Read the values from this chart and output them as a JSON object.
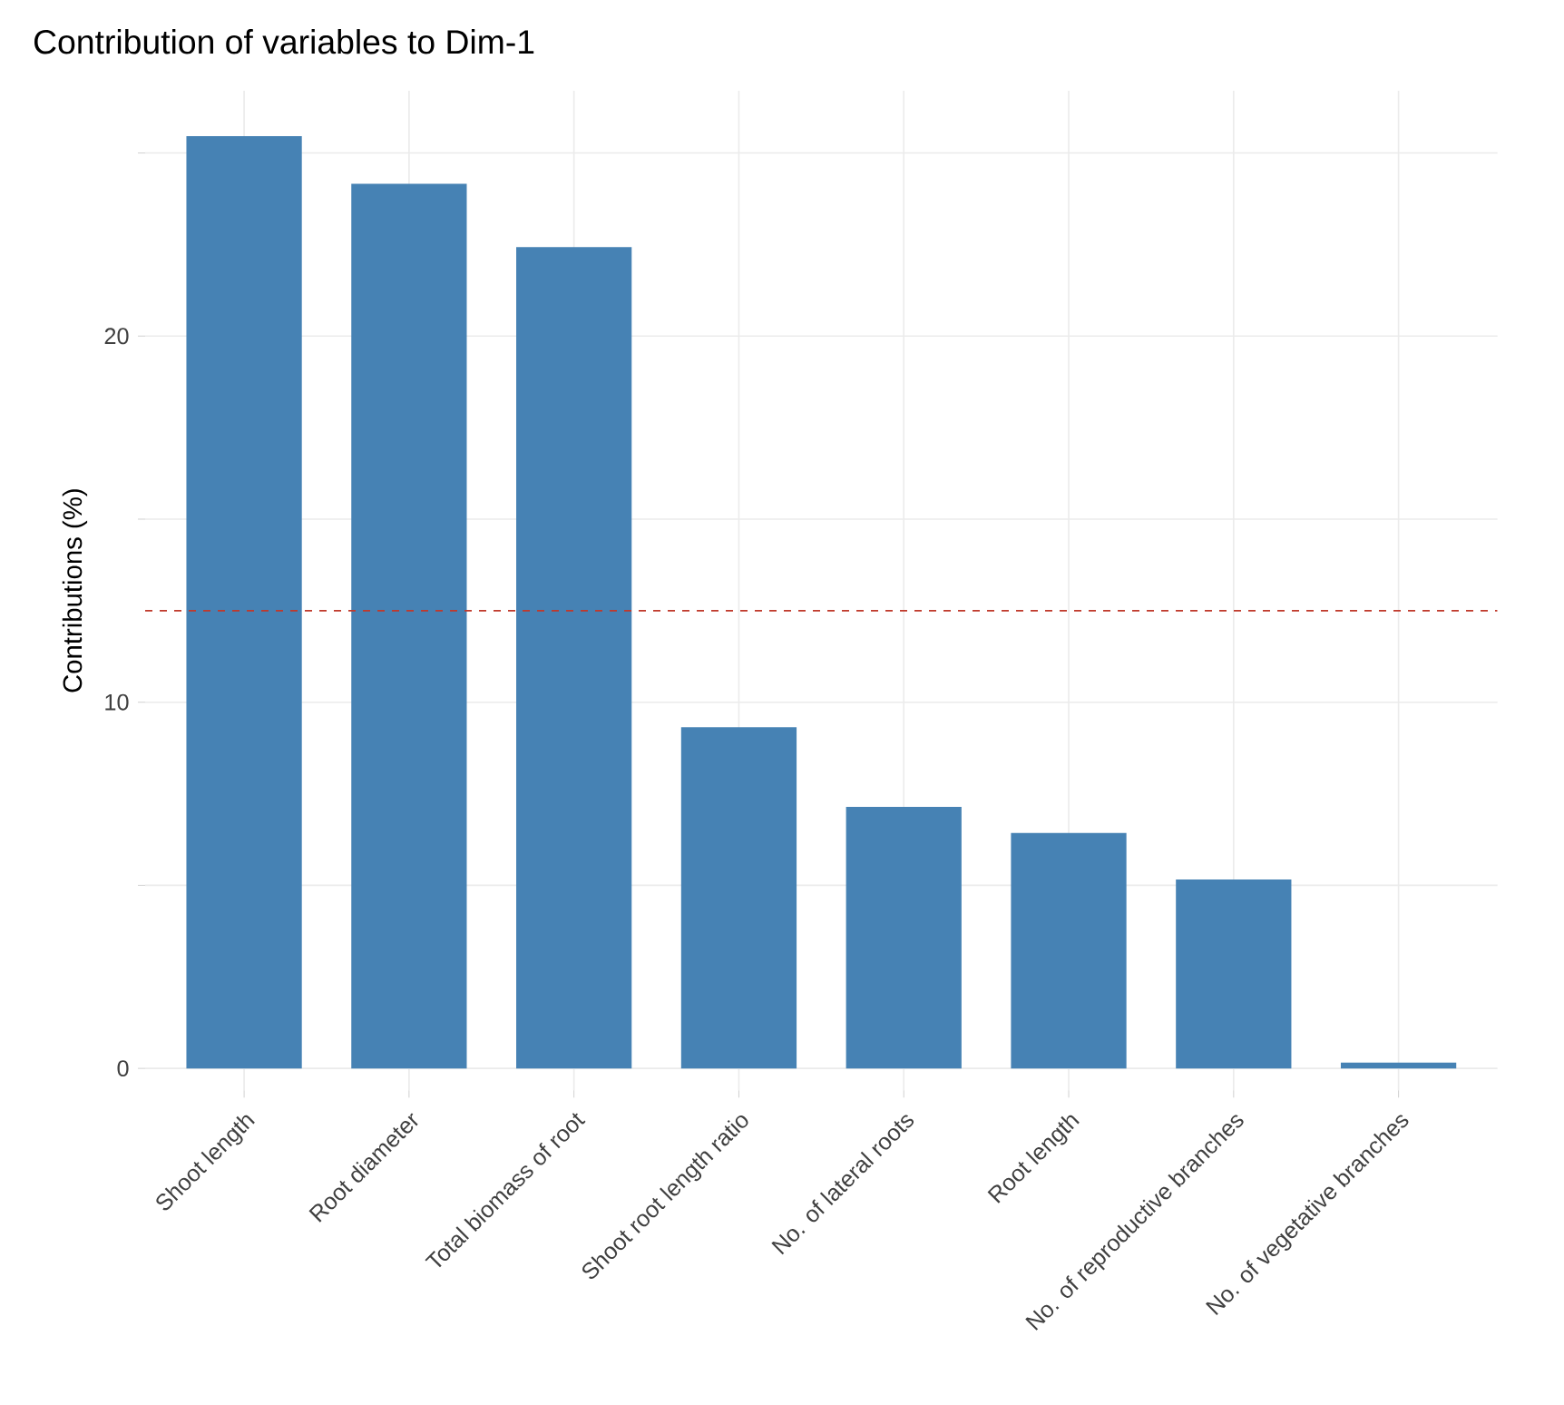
{
  "chart_data": {
    "type": "bar",
    "title": "Contribution of variables to Dim-1",
    "ylabel": "Contributions (%)",
    "categories": [
      "Shoot length",
      "Root diameter",
      "Total biomass of root",
      "Shoot root length ratio",
      "No. of lateral roots",
      "Root length",
      "No. of reproductive branches",
      "No. of vegetative branches"
    ],
    "values": [
      25.46,
      24.16,
      22.43,
      9.32,
      7.14,
      6.43,
      5.16,
      0.16
    ],
    "color": "#4682b4",
    "ylim": [
      -0.6,
      26.7
    ],
    "yticks": [
      0,
      {
        "value": 5,
        "label": null
      },
      10,
      {
        "value": 15,
        "label": null
      },
      20,
      {
        "value": 25,
        "label": null
      }
    ],
    "ref_lines": [
      {
        "axis": "y",
        "value": 12.5,
        "color": "#c0392b",
        "line_style": "dashed"
      }
    ],
    "grid": true
  }
}
